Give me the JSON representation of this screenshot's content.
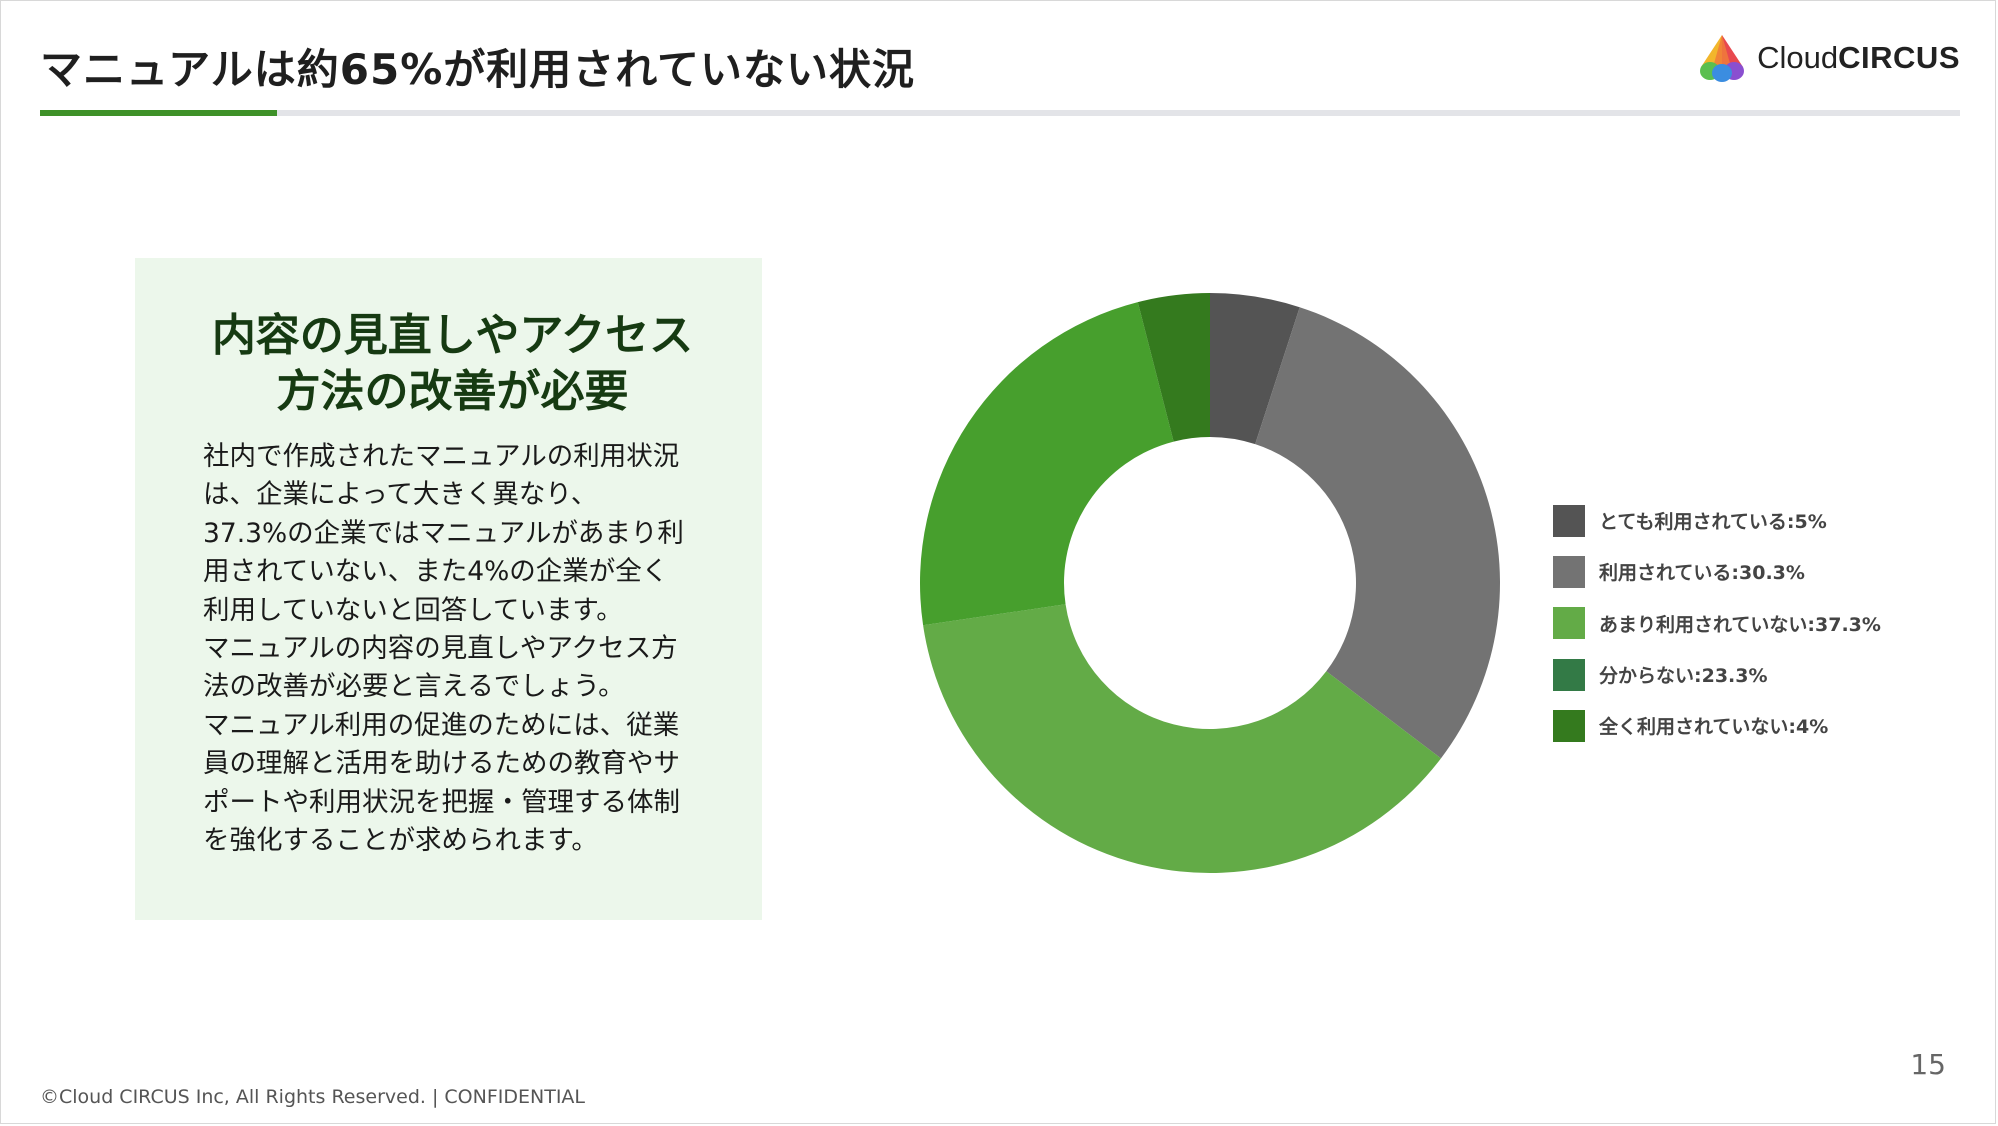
{
  "slide": {
    "title": "マニュアルは約65%が利用されていない状況",
    "logo": {
      "text_light": "Cloud",
      "text_bold": "CIRCUS"
    },
    "page_number": "15",
    "footer": "©Cloud CIRCUS Inc, All Rights Reserved. | CONFIDENTIAL",
    "accent_color": "#3e9128"
  },
  "note": {
    "heading_lines": [
      "内容の見直しやアクセス",
      "方法の改善が必要"
    ],
    "body_lines": [
      "社内で作成されたマニュアルの利用状況",
      "は、企業によって大きく異なり、",
      "37.3%の企業ではマニュアルがあまり利",
      "用されていない、また4%の企業が全く",
      "利用していないと回答しています。",
      "マニュアルの内容の見直しやアクセス方",
      "法の改善が必要と言えるでしょう。",
      "マニュアル利用の促進のためには、従業",
      "員の理解と活用を助けるための教育やサ",
      "ポートや利用状況を把握・管理する体制",
      "を強化することが求められます。"
    ]
  },
  "chart_data": {
    "type": "pie",
    "donut": true,
    "legend_position": "right",
    "slices": [
      {
        "label": "とても利用されている:5%",
        "value": 5,
        "color": "#545454"
      },
      {
        "label": "利用されている:30.3%",
        "value": 30.3,
        "color": "#737373"
      },
      {
        "label": "あまり利用されていない:37.3%",
        "value": 37.3,
        "color": "#63ab47"
      },
      {
        "label": "分からない:23.3%",
        "value": 23.3,
        "color": "#479f2d"
      },
      {
        "label": "全く利用されていない:4%",
        "value": 4,
        "color": "#347a1e"
      }
    ]
  },
  "legend_colors": [
    "#545454",
    "#737373",
    "#63ab47",
    "#337a46",
    "#347a1e"
  ]
}
